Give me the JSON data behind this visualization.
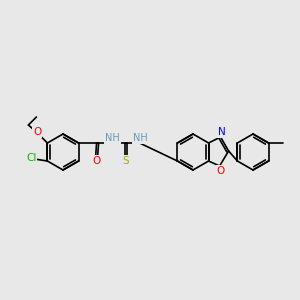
{
  "bg_color": "#e8e8e8",
  "bond_color": "#000000",
  "bond_width": 1.2,
  "atom_colors": {
    "Cl": "#00bb00",
    "O": "#ff0000",
    "N": "#0000ff",
    "S": "#aaaa00",
    "H": "#6699bb",
    "C": "#000000"
  },
  "figsize": [
    3.0,
    3.0
  ],
  "dpi": 100
}
